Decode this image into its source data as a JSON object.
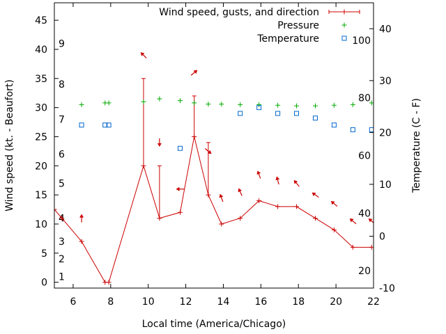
{
  "chart_data": {
    "type": "line",
    "xlabel": "Local time (America/Chicago)",
    "ylabel_left": "Wind speed (kt. - Beaufort)",
    "ylabel_right": "Temperature (C - F)",
    "xlim": [
      5,
      22
    ],
    "ylim_left": [
      -1,
      48
    ],
    "ylim_right": [
      -10,
      45
    ],
    "x_ticks": [
      6,
      8,
      10,
      12,
      14,
      16,
      18,
      20,
      22
    ],
    "y_ticks_left": [
      0,
      5,
      10,
      15,
      20,
      25,
      30,
      35,
      40,
      45
    ],
    "y_ticks_right": [
      -10,
      0,
      10,
      20,
      30,
      40
    ],
    "beaufort_labels": [
      {
        "label": "1",
        "kt": 1
      },
      {
        "label": "2",
        "kt": 4
      },
      {
        "label": "3",
        "kt": 7
      },
      {
        "label": "4",
        "kt": 11
      },
      {
        "label": "5",
        "kt": 17
      },
      {
        "label": "6",
        "kt": 22
      },
      {
        "label": "7",
        "kt": 28
      },
      {
        "label": "8",
        "kt": 34
      },
      {
        "label": "9",
        "kt": 41
      }
    ],
    "fahrenheit_labels": [
      {
        "label": "20",
        "degF": 20
      },
      {
        "label": "40",
        "degF": 40
      },
      {
        "label": "60",
        "degF": 60
      },
      {
        "label": "80",
        "degF": 80
      },
      {
        "label": "100",
        "degF": 100
      }
    ],
    "legend_position": "top-right",
    "series": [
      {
        "name": "Wind speed, gusts, and direction",
        "color": "#cc0000",
        "points": [
          {
            "x": 5.0,
            "y": 12.5
          },
          {
            "x": 5.4,
            "y": 11
          },
          {
            "x": 6.45,
            "y": 7
          },
          {
            "x": 7.7,
            "y": 0
          },
          {
            "x": 7.9,
            "y": 0
          },
          {
            "x": 9.75,
            "y": 20,
            "gust": 35
          },
          {
            "x": 10.6,
            "y": 11,
            "gust": 20
          },
          {
            "x": 11.7,
            "y": 12
          },
          {
            "x": 12.45,
            "y": 25,
            "gust": 32
          },
          {
            "x": 13.2,
            "y": 15,
            "gust": 24
          },
          {
            "x": 13.9,
            "y": 10
          },
          {
            "x": 14.9,
            "y": 11
          },
          {
            "x": 15.9,
            "y": 14
          },
          {
            "x": 16.9,
            "y": 13
          },
          {
            "x": 17.9,
            "y": 13
          },
          {
            "x": 18.9,
            "y": 11
          },
          {
            "x": 19.9,
            "y": 9
          },
          {
            "x": 20.9,
            "y": 6
          },
          {
            "x": 21.9,
            "y": 6
          }
        ],
        "direction_arrows": [
          {
            "x": 6.45,
            "y": 11,
            "angle_deg": -90
          },
          {
            "x": 9.75,
            "y": 39,
            "angle_deg": -135
          },
          {
            "x": 10.6,
            "y": 24,
            "angle_deg": 90
          },
          {
            "x": 11.7,
            "y": 16,
            "angle_deg": 180
          },
          {
            "x": 12.45,
            "y": 36,
            "angle_deg": -40
          },
          {
            "x": 13.2,
            "y": 22.5,
            "angle_deg": 40
          },
          {
            "x": 13.9,
            "y": 14.5,
            "angle_deg": -110
          },
          {
            "x": 14.9,
            "y": 15.5,
            "angle_deg": -115
          },
          {
            "x": 15.9,
            "y": 18.5,
            "angle_deg": -110
          },
          {
            "x": 16.9,
            "y": 17.5,
            "angle_deg": -105
          },
          {
            "x": 17.9,
            "y": 17,
            "angle_deg": -130
          },
          {
            "x": 18.9,
            "y": 15,
            "angle_deg": -145
          },
          {
            "x": 19.9,
            "y": 13.5,
            "angle_deg": -140
          },
          {
            "x": 20.9,
            "y": 10.5,
            "angle_deg": -140
          },
          {
            "x": 21.9,
            "y": 10.5,
            "angle_deg": -140
          }
        ]
      },
      {
        "name": "Pressure",
        "color": "#00aa00",
        "marker": "plus",
        "points": [
          {
            "x": 6.45,
            "y": 30.5
          },
          {
            "x": 7.7,
            "y": 30.8
          },
          {
            "x": 7.9,
            "y": 30.8
          },
          {
            "x": 9.75,
            "y": 31
          },
          {
            "x": 10.6,
            "y": 31.5
          },
          {
            "x": 11.7,
            "y": 31.2
          },
          {
            "x": 12.45,
            "y": 30.8
          },
          {
            "x": 13.2,
            "y": 30.6
          },
          {
            "x": 13.9,
            "y": 30.6
          },
          {
            "x": 14.9,
            "y": 30.5
          },
          {
            "x": 15.9,
            "y": 30.5
          },
          {
            "x": 16.9,
            "y": 30.4
          },
          {
            "x": 17.9,
            "y": 30.3
          },
          {
            "x": 18.9,
            "y": 30.3
          },
          {
            "x": 19.9,
            "y": 30.4
          },
          {
            "x": 20.9,
            "y": 30.5
          },
          {
            "x": 21.9,
            "y": 30.8
          }
        ]
      },
      {
        "name": "Temperature",
        "color": "#0066cc",
        "marker": "square",
        "points": [
          {
            "x": 6.45,
            "y": 27
          },
          {
            "x": 7.7,
            "y": 27
          },
          {
            "x": 7.9,
            "y": 27
          },
          {
            "x": 11.7,
            "y": 23
          },
          {
            "x": 14.9,
            "y": 29
          },
          {
            "x": 15.9,
            "y": 30
          },
          {
            "x": 16.9,
            "y": 29
          },
          {
            "x": 17.9,
            "y": 29
          },
          {
            "x": 18.9,
            "y": 28.2
          },
          {
            "x": 19.9,
            "y": 27
          },
          {
            "x": 20.9,
            "y": 26.2
          },
          {
            "x": 21.9,
            "y": 26.2
          }
        ]
      }
    ]
  }
}
